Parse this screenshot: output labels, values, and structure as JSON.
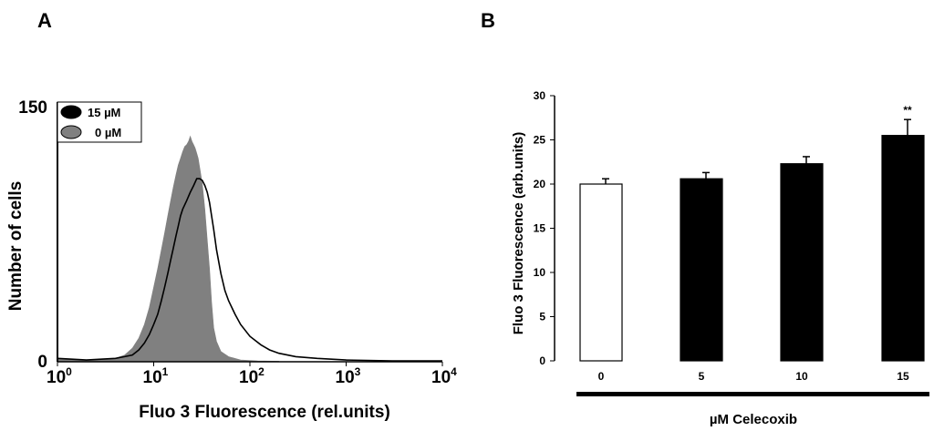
{
  "panels": {
    "a_label": "A",
    "b_label": "B"
  },
  "chart_data": [
    {
      "type": "area",
      "panel": "A",
      "xlabel": "Fluo 3 Fluorescence (rel.units)",
      "ylabel": "Number of cells",
      "xscale": "log",
      "xlim": [
        1,
        10000
      ],
      "ylim": [
        0,
        150
      ],
      "x_ticks": [
        {
          "base": "10",
          "exp": "0",
          "value": 1
        },
        {
          "base": "10",
          "exp": "1",
          "value": 10
        },
        {
          "base": "10",
          "exp": "2",
          "value": 100
        },
        {
          "base": "10",
          "exp": "3",
          "value": 1000
        },
        {
          "base": "10",
          "exp": "4",
          "value": 10000
        }
      ],
      "y_ticks": [
        {
          "label": "0",
          "value": 0
        },
        {
          "label": "150",
          "value": 150
        }
      ],
      "legend": {
        "placement": "top-left",
        "entries": [
          {
            "label": "15 µM",
            "color": "#000000"
          },
          {
            "label": "0 µM",
            "color": "#808080"
          }
        ]
      },
      "series": [
        {
          "name": "0 µM",
          "style": "filled",
          "color": "#808080",
          "points": [
            [
              1,
              2
            ],
            [
              2,
              1
            ],
            [
              4,
              2
            ],
            [
              5,
              4
            ],
            [
              6,
              8
            ],
            [
              7,
              14
            ],
            [
              8,
              22
            ],
            [
              9,
              32
            ],
            [
              10,
              44
            ],
            [
              11,
              55
            ],
            [
              12,
              66
            ],
            [
              13,
              76
            ],
            [
              14,
              86
            ],
            [
              15,
              95
            ],
            [
              16,
              103
            ],
            [
              17,
              110
            ],
            [
              18,
              116
            ],
            [
              19,
              120
            ],
            [
              20,
              124
            ],
            [
              21,
              127
            ],
            [
              22,
              128
            ],
            [
              23,
              130
            ],
            [
              24,
              133
            ],
            [
              25,
              130
            ],
            [
              26,
              128
            ],
            [
              27,
              126
            ],
            [
              28,
              123
            ],
            [
              29,
              120
            ],
            [
              30,
              115
            ],
            [
              32,
              105
            ],
            [
              34,
              90
            ],
            [
              36,
              72
            ],
            [
              38,
              55
            ],
            [
              40,
              35
            ],
            [
              42,
              20
            ],
            [
              45,
              12
            ],
            [
              50,
              6
            ],
            [
              60,
              3
            ],
            [
              80,
              1
            ],
            [
              120,
              0.5
            ],
            [
              200,
              0.3
            ]
          ]
        },
        {
          "name": "15 µM",
          "style": "line",
          "color": "#000000",
          "points": [
            [
              1,
              2
            ],
            [
              2,
              1
            ],
            [
              4,
              2
            ],
            [
              5,
              3
            ],
            [
              6,
              4
            ],
            [
              7,
              7
            ],
            [
              8,
              11
            ],
            [
              9,
              16
            ],
            [
              10,
              22
            ],
            [
              11,
              28
            ],
            [
              12,
              36
            ],
            [
              13,
              44
            ],
            [
              14,
              52
            ],
            [
              15,
              60
            ],
            [
              16,
              67
            ],
            [
              17,
              74
            ],
            [
              18,
              80
            ],
            [
              19,
              86
            ],
            [
              20,
              90
            ],
            [
              22,
              95
            ],
            [
              24,
              100
            ],
            [
              26,
              104
            ],
            [
              28,
              108
            ],
            [
              30,
              108
            ],
            [
              32,
              107
            ],
            [
              34,
              104
            ],
            [
              36,
              100
            ],
            [
              38,
              94
            ],
            [
              40,
              86
            ],
            [
              42,
              78
            ],
            [
              45,
              66
            ],
            [
              50,
              52
            ],
            [
              55,
              42
            ],
            [
              60,
              36
            ],
            [
              70,
              28
            ],
            [
              80,
              22
            ],
            [
              100,
              15
            ],
            [
              130,
              10
            ],
            [
              160,
              7
            ],
            [
              200,
              5
            ],
            [
              300,
              3
            ],
            [
              500,
              2
            ],
            [
              1000,
              1
            ],
            [
              3000,
              0.5
            ],
            [
              10000,
              0.5
            ]
          ]
        }
      ]
    },
    {
      "type": "bar",
      "panel": "B",
      "xlabel": "µM Celecoxib",
      "ylabel": "Fluo 3 Fluorescence (arb.units)",
      "ylim": [
        0,
        30
      ],
      "y_ticks": [
        "0",
        "5",
        "10",
        "15",
        "20",
        "25",
        "30"
      ],
      "categories": [
        "0",
        "5",
        "10",
        "15"
      ],
      "values": [
        20.0,
        20.6,
        22.3,
        25.5
      ],
      "errors": [
        0.6,
        0.7,
        0.8,
        1.8
      ],
      "bar_colors": [
        "#ffffff",
        "#000000",
        "#000000",
        "#000000"
      ],
      "annotations": [
        {
          "category": "15",
          "text": "**"
        }
      ]
    }
  ]
}
